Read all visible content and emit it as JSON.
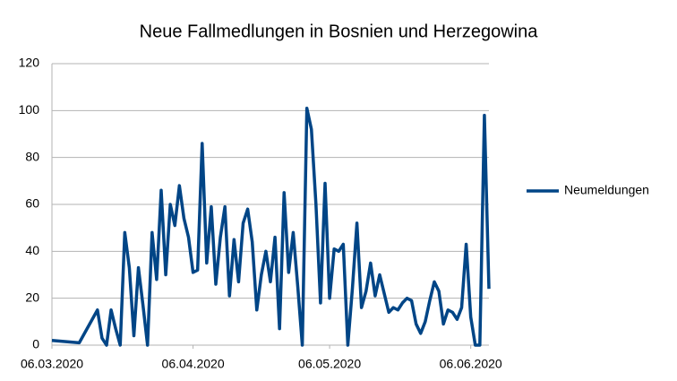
{
  "chart_data": {
    "type": "line",
    "title": "Neue Fallmedlungen in Bosnien und Herzegowina",
    "x": [
      "2020-03-06",
      "2020-03-12",
      "2020-03-16",
      "2020-03-17",
      "2020-03-18",
      "2020-03-19",
      "2020-03-20",
      "2020-03-21",
      "2020-03-22",
      "2020-03-23",
      "2020-03-24",
      "2020-03-25",
      "2020-03-26",
      "2020-03-27",
      "2020-03-28",
      "2020-03-29",
      "2020-03-30",
      "2020-03-31",
      "2020-04-01",
      "2020-04-02",
      "2020-04-03",
      "2020-04-04",
      "2020-04-05",
      "2020-04-06",
      "2020-04-07",
      "2020-04-08",
      "2020-04-09",
      "2020-04-10",
      "2020-04-11",
      "2020-04-12",
      "2020-04-13",
      "2020-04-14",
      "2020-04-15",
      "2020-04-16",
      "2020-04-17",
      "2020-04-18",
      "2020-04-19",
      "2020-04-20",
      "2020-04-21",
      "2020-04-22",
      "2020-04-23",
      "2020-04-24",
      "2020-04-25",
      "2020-04-26",
      "2020-04-27",
      "2020-04-28",
      "2020-04-29",
      "2020-04-30",
      "2020-05-01",
      "2020-05-02",
      "2020-05-03",
      "2020-05-04",
      "2020-05-05",
      "2020-05-06",
      "2020-05-07",
      "2020-05-08",
      "2020-05-09",
      "2020-05-10",
      "2020-05-11",
      "2020-05-12",
      "2020-05-13",
      "2020-05-14",
      "2020-05-15",
      "2020-05-16",
      "2020-05-17",
      "2020-05-18",
      "2020-05-19",
      "2020-05-20",
      "2020-05-21",
      "2020-05-22",
      "2020-05-23",
      "2020-05-24",
      "2020-05-25",
      "2020-05-26",
      "2020-05-27",
      "2020-05-28",
      "2020-05-29",
      "2020-05-30",
      "2020-05-31",
      "2020-06-01",
      "2020-06-02",
      "2020-06-03",
      "2020-06-04",
      "2020-06-05",
      "2020-06-06",
      "2020-06-07",
      "2020-06-08",
      "2020-06-09",
      "2020-06-10"
    ],
    "series": [
      {
        "name": "Neumeldungen",
        "color": "#004586",
        "values": [
          2,
          1,
          15,
          3,
          0,
          15,
          7,
          0,
          48,
          33,
          4,
          33,
          17,
          0,
          48,
          28,
          66,
          30,
          60,
          51,
          68,
          54,
          46,
          31,
          32,
          86,
          35,
          59,
          26,
          46,
          59,
          21,
          45,
          27,
          52,
          58,
          44,
          15,
          30,
          40,
          27,
          46,
          7,
          65,
          31,
          48,
          25,
          0,
          101,
          92,
          60,
          18,
          69,
          20,
          41,
          40,
          43,
          0,
          24,
          52,
          16,
          23,
          35,
          21,
          30,
          22,
          14,
          16,
          15,
          18,
          20,
          19,
          9,
          5,
          10,
          19,
          27,
          23,
          9,
          15,
          14,
          11,
          16,
          43,
          12,
          0,
          0,
          98,
          24
        ]
      }
    ],
    "xlim": [
      "2020-03-06",
      "2020-06-10"
    ],
    "xticks": [
      {
        "value": "2020-03-06",
        "label": "06.03.2020"
      },
      {
        "value": "2020-04-06",
        "label": "06.04.2020"
      },
      {
        "value": "2020-05-06",
        "label": "06.05.2020"
      },
      {
        "value": "2020-06-06",
        "label": "06.06.2020"
      }
    ],
    "ylim": [
      0,
      120
    ],
    "yticks": [
      0,
      20,
      40,
      60,
      80,
      100,
      120
    ],
    "grid": true,
    "legend": "right"
  }
}
